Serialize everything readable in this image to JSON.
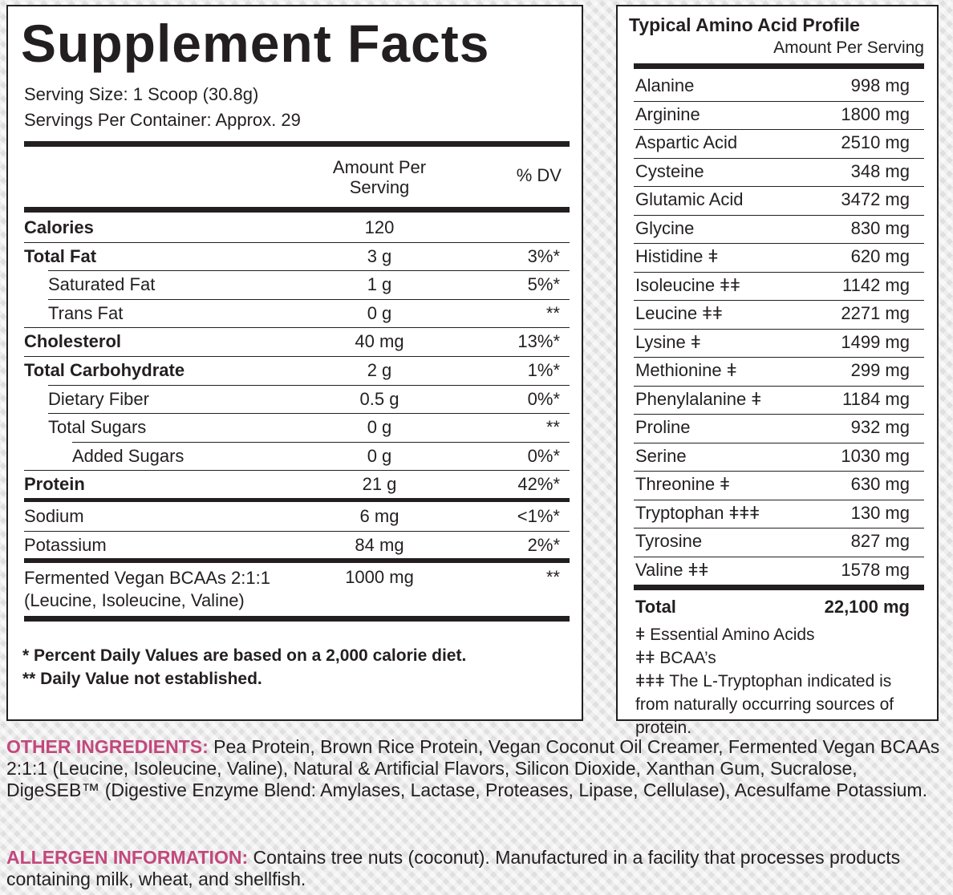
{
  "supplement_facts": {
    "title": "Supplement Facts",
    "serving_size": "Serving Size: 1 Scoop (30.8g)",
    "servings_per_container": "Servings Per Container: Approx. 29",
    "header": {
      "amount": "Amount Per Serving",
      "dv": "% DV"
    },
    "rows": [
      {
        "name": "Calories",
        "amount": "120"
      },
      {
        "name": "Total Fat",
        "amount": "3 g",
        "dv": "3%*"
      },
      {
        "name": "Saturated Fat",
        "amount": "1 g",
        "dv": "5%*"
      },
      {
        "name": "Trans Fat",
        "amount": "0 g",
        "dv": "**"
      },
      {
        "name": "Cholesterol",
        "amount": "40 mg",
        "dv": "13%*"
      },
      {
        "name": "Total Carbohydrate",
        "amount": "2 g",
        "dv": "1%*"
      },
      {
        "name": "Dietary Fiber",
        "amount": "0.5 g",
        "dv": "0%*"
      },
      {
        "name": "Total Sugars",
        "amount": "0 g",
        "dv": "**"
      },
      {
        "name": "Added Sugars",
        "amount": "0 g",
        "dv": "0%*"
      },
      {
        "name": "Protein",
        "amount": "21 g",
        "dv": "42%*"
      },
      {
        "name": "Sodium",
        "amount": "6 mg",
        "dv": "<1%*"
      },
      {
        "name": "Potassium",
        "amount": "84 mg",
        "dv": "2%*"
      },
      {
        "name": "Fermented Vegan BCAAs 2:1:1 (Leucine, Isoleucine, Valine)",
        "amount": "1000 mg",
        "dv": "**"
      }
    ],
    "footnotes": [
      "* Percent Daily Values are based on a 2,000 calorie diet.",
      "** Daily Value not established."
    ]
  },
  "amino_profile": {
    "title": "Typical Amino Acid Profile",
    "subtitle": "Amount Per Serving",
    "rows": [
      {
        "name": "Alanine",
        "amount": "998 mg"
      },
      {
        "name": "Arginine",
        "amount": "1800 mg"
      },
      {
        "name": "Aspartic Acid",
        "amount": "2510 mg"
      },
      {
        "name": "Cysteine",
        "amount": "348 mg"
      },
      {
        "name": "Glutamic Acid",
        "amount": "3472 mg"
      },
      {
        "name": "Glycine",
        "amount": "830 mg"
      },
      {
        "name": "Histidine ǂ",
        "amount": "620 mg"
      },
      {
        "name": "Isoleucine ǂǂ",
        "amount": "1142 mg"
      },
      {
        "name": "Leucine ǂǂ",
        "amount": "2271 mg"
      },
      {
        "name": "Lysine ǂ",
        "amount": "1499 mg"
      },
      {
        "name": "Methionine ǂ",
        "amount": "299 mg"
      },
      {
        "name": "Phenylalanine ǂ",
        "amount": "1184 mg"
      },
      {
        "name": "Proline",
        "amount": "932 mg"
      },
      {
        "name": "Serine",
        "amount": "1030 mg"
      },
      {
        "name": "Threonine ǂ",
        "amount": "630 mg"
      },
      {
        "name": "Tryptophan ǂǂǂ",
        "amount": "130 mg"
      },
      {
        "name": "Tyrosine",
        "amount": "827 mg"
      },
      {
        "name": "Valine ǂǂ",
        "amount": "1578 mg"
      }
    ],
    "total": {
      "name": "Total",
      "amount": "22,100 mg"
    },
    "legend": [
      "ǂ Essential Amino Acids",
      "ǂǂ BCAA’s",
      "ǂǂǂ The L-Tryptophan indicated is from naturally occurring sources of protein."
    ]
  },
  "other_ingredients": {
    "label": "OTHER INGREDIENTS:",
    "text": "Pea Protein, Brown Rice Protein, Vegan Coconut Oil Creamer, Fermented Vegan BCAAs 2:1:1 (Leucine, Isoleucine, Valine), Natural & Artificial Flavors, Silicon Dioxide, Xanthan Gum, Sucralose, DigeSEB™ (Digestive Enzyme Blend: Amylases, Lactase, Proteases, Lipase, Cellulase), Acesulfame Potassium."
  },
  "allergen_information": {
    "label": "ALLERGEN INFORMATION:",
    "text": "Contains tree nuts (coconut). Manufactured in a facility that processes products containing milk, wheat, and shellfish."
  }
}
